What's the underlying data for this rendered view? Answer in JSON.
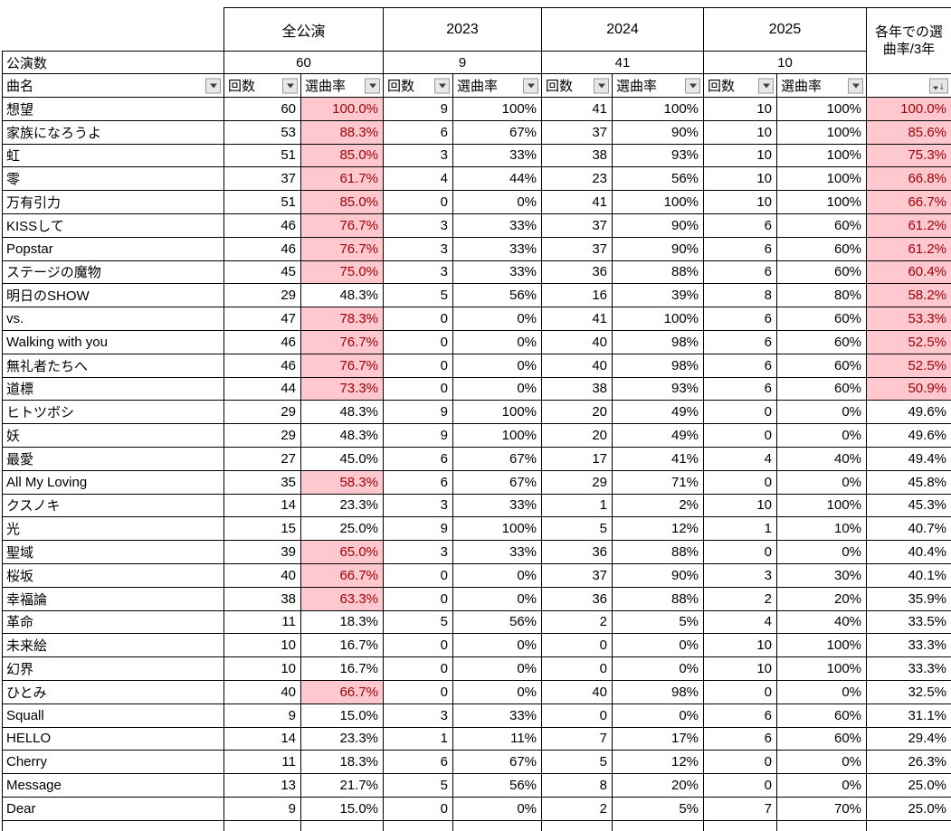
{
  "colors": {
    "highlight_fill": "#FFC7CE",
    "highlight_text": "#9C0006",
    "grid_border": "#000000",
    "filter_button_bg": "#E7E7E7",
    "filter_button_border": "#9A9A9A"
  },
  "table": {
    "group_headers": {
      "all": "全公演",
      "y2023": "2023",
      "y2024": "2024",
      "y2025": "2025",
      "avg": "各年での選曲率/3年"
    },
    "row_labels": {
      "performances": "公演数",
      "song": "曲名"
    },
    "performance_counts": {
      "all": "60",
      "y2023": "9",
      "y2024": "41",
      "y2025": "10"
    },
    "col_headers": {
      "count": "回数",
      "rate": "選曲率"
    },
    "sort_icon_glyph": "↓",
    "highlight_threshold_percent": 50,
    "columns": [
      "曲名",
      "全公演 回数",
      "全公演 選曲率",
      "2023 回数",
      "2023 選曲率",
      "2024 回数",
      "2024 選曲率",
      "2025 回数",
      "2025 選曲率",
      "各年での選曲率/3年"
    ],
    "rows": [
      [
        "想望",
        "60",
        "100.0%",
        "9",
        "100%",
        "41",
        "100%",
        "10",
        "100%",
        "100.0%"
      ],
      [
        "家族になろうよ",
        "53",
        "88.3%",
        "6",
        "67%",
        "37",
        "90%",
        "10",
        "100%",
        "85.6%"
      ],
      [
        "虹",
        "51",
        "85.0%",
        "3",
        "33%",
        "38",
        "93%",
        "10",
        "100%",
        "75.3%"
      ],
      [
        "零",
        "37",
        "61.7%",
        "4",
        "44%",
        "23",
        "56%",
        "10",
        "100%",
        "66.8%"
      ],
      [
        "万有引力",
        "51",
        "85.0%",
        "0",
        "0%",
        "41",
        "100%",
        "10",
        "100%",
        "66.7%"
      ],
      [
        "KISSして",
        "46",
        "76.7%",
        "3",
        "33%",
        "37",
        "90%",
        "6",
        "60%",
        "61.2%"
      ],
      [
        "Popstar",
        "46",
        "76.7%",
        "3",
        "33%",
        "37",
        "90%",
        "6",
        "60%",
        "61.2%"
      ],
      [
        "ステージの魔物",
        "45",
        "75.0%",
        "3",
        "33%",
        "36",
        "88%",
        "6",
        "60%",
        "60.4%"
      ],
      [
        "明日のSHOW",
        "29",
        "48.3%",
        "5",
        "56%",
        "16",
        "39%",
        "8",
        "80%",
        "58.2%"
      ],
      [
        "vs.",
        "47",
        "78.3%",
        "0",
        "0%",
        "41",
        "100%",
        "6",
        "60%",
        "53.3%"
      ],
      [
        "Walking with you",
        "46",
        "76.7%",
        "0",
        "0%",
        "40",
        "98%",
        "6",
        "60%",
        "52.5%"
      ],
      [
        "無礼者たちへ",
        "46",
        "76.7%",
        "0",
        "0%",
        "40",
        "98%",
        "6",
        "60%",
        "52.5%"
      ],
      [
        "道標",
        "44",
        "73.3%",
        "0",
        "0%",
        "38",
        "93%",
        "6",
        "60%",
        "50.9%"
      ],
      [
        "ヒトツボシ",
        "29",
        "48.3%",
        "9",
        "100%",
        "20",
        "49%",
        "0",
        "0%",
        "49.6%"
      ],
      [
        "妖",
        "29",
        "48.3%",
        "9",
        "100%",
        "20",
        "49%",
        "0",
        "0%",
        "49.6%"
      ],
      [
        "最愛",
        "27",
        "45.0%",
        "6",
        "67%",
        "17",
        "41%",
        "4",
        "40%",
        "49.4%"
      ],
      [
        "All My Loving",
        "35",
        "58.3%",
        "6",
        "67%",
        "29",
        "71%",
        "0",
        "0%",
        "45.8%"
      ],
      [
        "クスノキ",
        "14",
        "23.3%",
        "3",
        "33%",
        "1",
        "2%",
        "10",
        "100%",
        "45.3%"
      ],
      [
        "光",
        "15",
        "25.0%",
        "9",
        "100%",
        "5",
        "12%",
        "1",
        "10%",
        "40.7%"
      ],
      [
        "聖域",
        "39",
        "65.0%",
        "3",
        "33%",
        "36",
        "88%",
        "0",
        "0%",
        "40.4%"
      ],
      [
        "桜坂",
        "40",
        "66.7%",
        "0",
        "0%",
        "37",
        "90%",
        "3",
        "30%",
        "40.1%"
      ],
      [
        "幸福論",
        "38",
        "63.3%",
        "0",
        "0%",
        "36",
        "88%",
        "2",
        "20%",
        "35.9%"
      ],
      [
        "革命",
        "11",
        "18.3%",
        "5",
        "56%",
        "2",
        "5%",
        "4",
        "40%",
        "33.5%"
      ],
      [
        "未来絵",
        "10",
        "16.7%",
        "0",
        "0%",
        "0",
        "0%",
        "10",
        "100%",
        "33.3%"
      ],
      [
        "幻界",
        "10",
        "16.7%",
        "0",
        "0%",
        "0",
        "0%",
        "10",
        "100%",
        "33.3%"
      ],
      [
        "ひとみ",
        "40",
        "66.7%",
        "0",
        "0%",
        "40",
        "98%",
        "0",
        "0%",
        "32.5%"
      ],
      [
        "Squall",
        "9",
        "15.0%",
        "3",
        "33%",
        "0",
        "0%",
        "6",
        "60%",
        "31.1%"
      ],
      [
        "HELLO",
        "14",
        "23.3%",
        "1",
        "11%",
        "7",
        "17%",
        "6",
        "60%",
        "29.4%"
      ],
      [
        "Cherry",
        "11",
        "18.3%",
        "6",
        "67%",
        "5",
        "12%",
        "0",
        "0%",
        "26.3%"
      ],
      [
        "Message",
        "13",
        "21.7%",
        "5",
        "56%",
        "8",
        "20%",
        "0",
        "0%",
        "25.0%"
      ],
      [
        "Dear",
        "9",
        "15.0%",
        "0",
        "0%",
        "2",
        "5%",
        "7",
        "70%",
        "25.0%"
      ]
    ]
  }
}
